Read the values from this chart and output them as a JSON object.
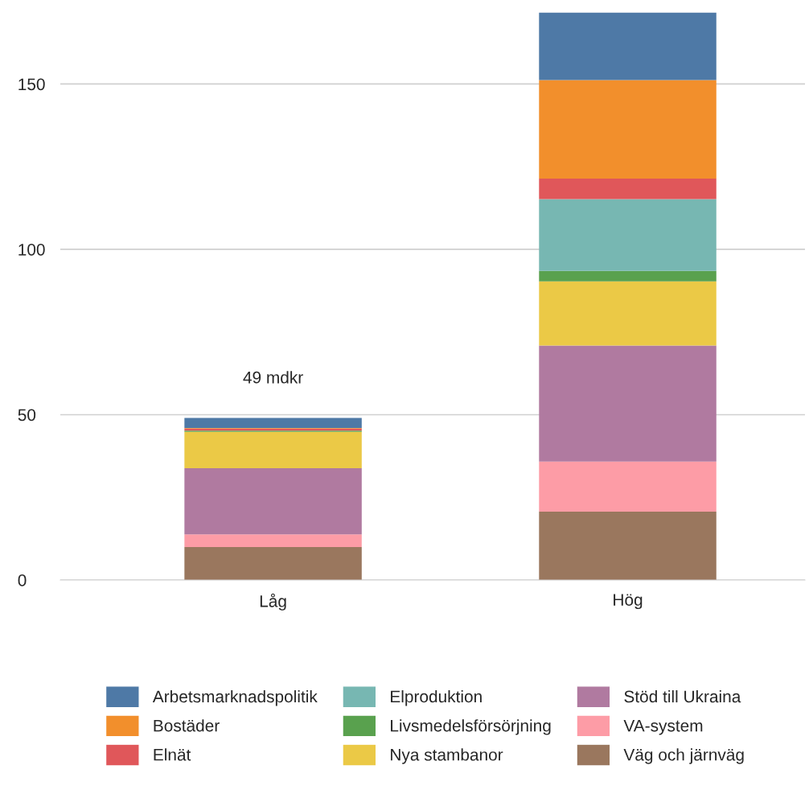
{
  "chart_data": {
    "type": "bar",
    "stacked": true,
    "categories": [
      "Låg",
      "Hög"
    ],
    "series": [
      {
        "name": "Väg och järnväg",
        "color": "#9a775e",
        "values": [
          10,
          20.7
        ]
      },
      {
        "name": "VA-system",
        "color": "#fd9ca6",
        "values": [
          3.8,
          15.1
        ]
      },
      {
        "name": "Stöd till Ukraina",
        "color": "#b07aa0",
        "values": [
          20,
          35.1
        ]
      },
      {
        "name": "Nya stambanor",
        "color": "#ebc946",
        "values": [
          11,
          19.4
        ]
      },
      {
        "name": "Livsmedelsförsörjning",
        "color": "#59a14e",
        "values": [
          0.4,
          3.2
        ]
      },
      {
        "name": "Elproduktion",
        "color": "#77b7b2",
        "values": [
          0,
          21.7
        ]
      },
      {
        "name": "Elnät",
        "color": "#e0575a",
        "values": [
          0.6,
          6.2
        ]
      },
      {
        "name": "Bostäder",
        "color": "#f28f2c",
        "values": [
          0.2,
          29.8
        ]
      },
      {
        "name": "Arbetsmarknadspolitik",
        "color": "#4e79a6",
        "values": [
          3,
          20.4
        ]
      }
    ],
    "ylim": [
      0,
      172
    ],
    "yticks": [
      0,
      50,
      100,
      150
    ],
    "grid": "y",
    "legend": "bottom",
    "annotations": [
      {
        "text": "49 mdkr",
        "x": "Låg",
        "y": 49
      }
    ]
  }
}
